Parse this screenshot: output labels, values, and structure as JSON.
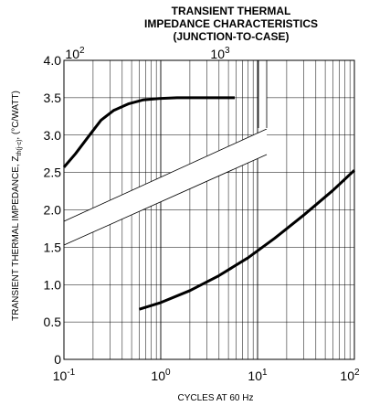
{
  "chart_data": {
    "type": "line",
    "title_lines": [
      "TRANSIENT THERMAL",
      "IMPEDANCE CHARACTERISTICS",
      "(JUNCTION-TO-CASE)"
    ],
    "xlabel": "CYCLES AT 60 Hz",
    "ylabel": {
      "prefix": "TRANSIENT THERMAL IMPEDANCE, Z",
      "subscript": "th(j-c)",
      "suffix": ", (°C/WATT)"
    },
    "x_scale": "log",
    "xlim": [
      0.1,
      100
    ],
    "ylim": [
      0,
      4.0
    ],
    "grid": true,
    "x_ticks": [
      {
        "value": 0.1,
        "base": "10",
        "exp": "-1"
      },
      {
        "value": 1,
        "base": "10",
        "exp": "0"
      },
      {
        "value": 10,
        "base": "10",
        "exp": "1"
      },
      {
        "value": 100,
        "base": "10",
        "exp": "2"
      }
    ],
    "top_x_ticks": [
      {
        "value": 100,
        "base": "10",
        "exp": "2"
      },
      {
        "value": 1000,
        "base": "10",
        "exp": "3"
      }
    ],
    "y_ticks": [
      "0",
      "0.5",
      "1.0",
      "1.5",
      "2.0",
      "2.5",
      "3.0",
      "3.5",
      "4.0"
    ],
    "series": [
      {
        "scale": "bottom x-axis (10^-1 to 10^2 cycles)",
        "points": [
          [
            0.6,
            0.67
          ],
          [
            1,
            0.76
          ],
          [
            2,
            0.92
          ],
          [
            4,
            1.12
          ],
          [
            8,
            1.36
          ],
          [
            15,
            1.62
          ],
          [
            30,
            1.93
          ],
          [
            60,
            2.26
          ],
          [
            100,
            2.53
          ]
        ]
      },
      {
        "scale": "top x-axis (10^2 to 10^4 cycles)",
        "points": [
          [
            100,
            2.57
          ],
          [
            120,
            2.75
          ],
          [
            150,
            3.0
          ],
          [
            180,
            3.2
          ],
          [
            220,
            3.33
          ],
          [
            280,
            3.42
          ],
          [
            350,
            3.47
          ],
          [
            450,
            3.49
          ],
          [
            600,
            3.5
          ],
          [
            1000,
            3.5
          ],
          [
            1500,
            3.5
          ]
        ]
      }
    ]
  }
}
